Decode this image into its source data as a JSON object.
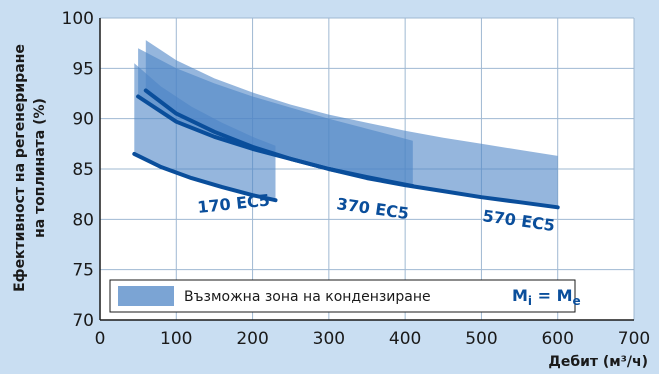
{
  "chart_data": {
    "type": "line",
    "xlabel": "Дебит (м³/ч)",
    "ylabel_line1": "Ефективност на регенериране",
    "ylabel_line2": "на топлината (%)",
    "xlim": [
      0,
      700
    ],
    "ylim": [
      70,
      100
    ],
    "x_ticks": [
      0,
      100,
      200,
      300,
      400,
      500,
      600,
      700
    ],
    "y_ticks": [
      70,
      75,
      80,
      85,
      90,
      95,
      100
    ],
    "grid": true,
    "legend": {
      "position": "bottom",
      "label": "Възможна зона на кондензиране",
      "equation_main": "M",
      "equation_sub1": "i",
      "equation_mid": " = M",
      "equation_sub2": "e"
    },
    "series": [
      {
        "name": "170 EC5",
        "x": [
          45,
          80,
          120,
          160,
          200,
          230
        ],
        "y": [
          86.5,
          85.2,
          84.1,
          83.2,
          82.4,
          81.9
        ],
        "band": {
          "x": [
            45,
            80,
            120,
            160,
            200,
            230
          ],
          "upper": [
            95.5,
            93.2,
            91.2,
            89.6,
            88.2,
            87.3
          ],
          "lower": [
            86.5,
            85.2,
            84.1,
            83.2,
            82.4,
            81.9
          ]
        }
      },
      {
        "name": "370 EC5",
        "x": [
          50,
          100,
          150,
          200,
          250,
          300,
          350,
          410
        ],
        "y": [
          92.2,
          89.7,
          88.2,
          87.0,
          86.0,
          85.0,
          84.2,
          83.3
        ],
        "band": {
          "x": [
            50,
            100,
            150,
            200,
            250,
            300,
            350,
            410
          ],
          "upper": [
            97.0,
            95.0,
            93.5,
            92.2,
            91.1,
            90.0,
            89.0,
            87.8
          ],
          "lower": [
            92.2,
            89.7,
            88.2,
            87.0,
            86.0,
            85.0,
            84.2,
            83.3
          ]
        }
      },
      {
        "name": "570 EC5",
        "x": [
          60,
          100,
          150,
          200,
          250,
          300,
          350,
          400,
          450,
          500,
          550,
          600
        ],
        "y": [
          92.8,
          90.5,
          88.7,
          87.2,
          86.0,
          85.0,
          84.1,
          83.4,
          82.8,
          82.2,
          81.7,
          81.2
        ],
        "band": {
          "x": [
            60,
            100,
            150,
            200,
            250,
            300,
            350,
            400,
            450,
            500,
            550,
            600
          ],
          "upper": [
            97.8,
            95.8,
            94.0,
            92.6,
            91.4,
            90.4,
            89.6,
            88.8,
            88.1,
            87.5,
            86.9,
            86.3
          ],
          "lower": [
            92.8,
            90.5,
            88.7,
            87.2,
            86.0,
            85.0,
            84.1,
            83.4,
            82.8,
            82.2,
            81.7,
            81.2
          ]
        }
      }
    ],
    "series_labels": [
      "170 EC5",
      "370 EC5",
      "570 EC5"
    ],
    "colors": {
      "background": "#c9def2",
      "plot": "#ffffff",
      "grid": "#9fb8d2",
      "band": "#4f86c6",
      "line": "#0a4e9b",
      "axis": "#1a1a1a"
    }
  }
}
